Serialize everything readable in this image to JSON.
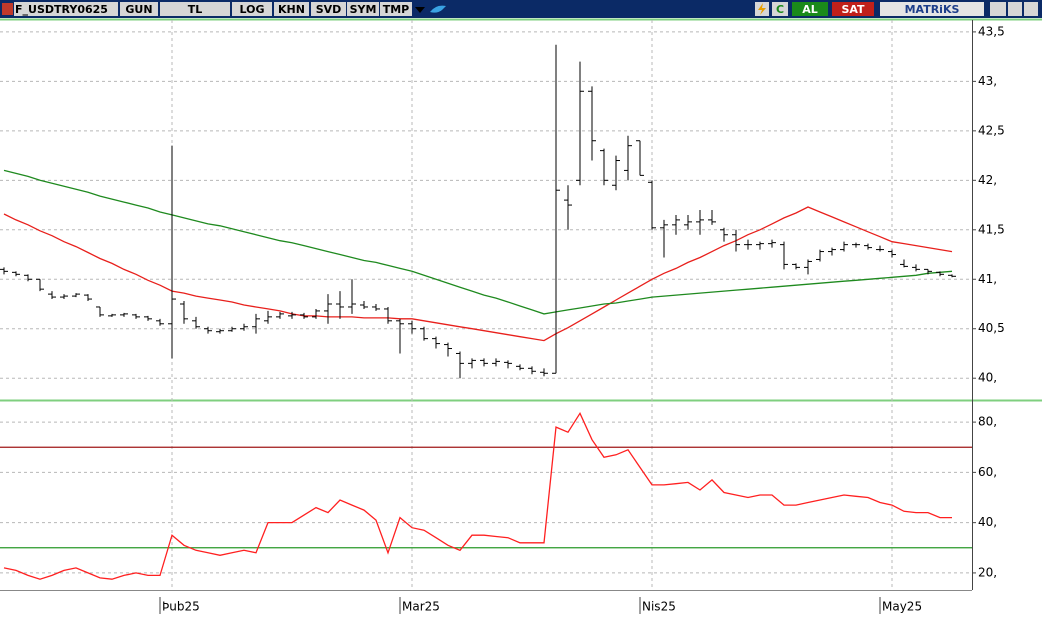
{
  "toolbar": {
    "symbol": "F_USDTRY0625",
    "buttons": [
      "GUN",
      "TL",
      "LOG",
      "KHN",
      "SVD",
      "SYM",
      "TMP"
    ],
    "c": "C",
    "buy": "AL",
    "sell": "SAT",
    "brand": "MATRiKS"
  },
  "chart_data": [
    {
      "type": "ohlc",
      "color": "#000000",
      "ylim": [
        39.8,
        43.6
      ],
      "yticks": [
        {
          "value": 40,
          "label": "40,"
        },
        {
          "value": 40.5,
          "label": "40,5"
        },
        {
          "value": 41,
          "label": "41,"
        },
        {
          "value": 41.5,
          "label": "41,5"
        },
        {
          "value": 42,
          "label": "42,"
        },
        {
          "value": 42.5,
          "label": "42,5"
        },
        {
          "value": 43,
          "label": "43,"
        },
        {
          "value": 43.5,
          "label": "43,5"
        }
      ],
      "grid": true,
      "open": [
        41.1,
        41.07,
        41.04,
        41.0,
        40.85,
        40.82,
        40.83,
        40.84,
        40.72,
        40.63,
        40.64,
        40.64,
        40.62,
        40.58,
        40.55,
        40.75,
        40.58,
        40.5,
        40.47,
        40.48,
        40.5,
        40.52,
        40.58,
        40.62,
        40.63,
        40.64,
        40.62,
        40.68,
        40.75,
        40.72,
        40.74,
        40.72,
        40.7,
        40.58,
        40.55,
        40.5,
        40.4,
        40.34,
        40.25,
        40.15,
        40.18,
        40.15,
        40.16,
        40.12,
        40.1,
        40.06,
        40.05,
        41.8,
        42.0,
        42.9,
        42.3,
        41.95,
        42.1,
        42.4,
        41.98,
        41.52,
        41.55,
        41.55,
        41.58,
        41.6,
        41.5,
        41.45,
        41.35,
        41.35,
        41.36,
        41.35,
        41.15,
        41.12,
        41.2,
        41.28,
        41.3,
        41.35,
        41.34,
        41.3,
        41.28,
        41.15,
        41.12,
        41.1,
        41.07,
        41.04
      ],
      "high": [
        41.12,
        41.08,
        41.05,
        41.0,
        40.88,
        40.85,
        40.86,
        40.85,
        40.72,
        40.65,
        40.66,
        40.65,
        40.63,
        40.6,
        42.35,
        40.78,
        40.62,
        40.52,
        40.5,
        40.52,
        40.55,
        40.65,
        40.68,
        40.67,
        40.67,
        40.66,
        40.7,
        40.85,
        40.88,
        41.0,
        40.78,
        40.75,
        40.72,
        40.6,
        40.58,
        40.52,
        40.42,
        40.36,
        40.27,
        40.2,
        40.2,
        40.2,
        40.18,
        40.14,
        40.12,
        40.1,
        43.37,
        41.95,
        43.2,
        42.95,
        42.32,
        42.25,
        42.45,
        42.4,
        42.0,
        41.6,
        41.65,
        41.65,
        41.7,
        41.7,
        41.52,
        41.5,
        41.4,
        41.38,
        41.4,
        41.38,
        41.16,
        41.2,
        41.3,
        41.32,
        41.38,
        41.37,
        41.36,
        41.34,
        41.3,
        41.2,
        41.15,
        41.1,
        41.08,
        41.05
      ],
      "low": [
        41.05,
        41.03,
        40.98,
        40.88,
        40.8,
        40.8,
        40.82,
        40.78,
        40.62,
        40.62,
        40.62,
        40.6,
        40.58,
        40.53,
        40.2,
        40.55,
        40.5,
        40.45,
        40.45,
        40.47,
        40.48,
        40.45,
        40.55,
        40.6,
        40.6,
        40.6,
        40.6,
        40.55,
        40.6,
        40.65,
        40.7,
        40.68,
        40.55,
        40.25,
        40.45,
        40.38,
        40.3,
        40.22,
        40.0,
        40.1,
        40.12,
        40.12,
        40.1,
        40.08,
        40.04,
        40.02,
        40.05,
        41.5,
        41.95,
        42.2,
        41.95,
        41.9,
        42.0,
        42.05,
        41.5,
        41.22,
        41.45,
        41.5,
        41.45,
        41.55,
        41.38,
        41.28,
        41.3,
        41.3,
        41.32,
        41.1,
        41.1,
        41.05,
        41.18,
        41.24,
        41.28,
        41.32,
        41.3,
        41.28,
        41.22,
        41.12,
        41.08,
        41.05,
        41.03,
        41.02
      ],
      "close": [
        41.08,
        41.05,
        41.0,
        40.9,
        40.82,
        40.83,
        40.85,
        40.8,
        40.64,
        40.64,
        40.65,
        40.62,
        40.6,
        40.55,
        40.8,
        40.6,
        40.52,
        40.48,
        40.48,
        40.5,
        40.52,
        40.6,
        40.62,
        40.65,
        40.64,
        40.62,
        40.68,
        40.75,
        40.72,
        40.75,
        40.72,
        40.7,
        40.58,
        40.55,
        40.5,
        40.4,
        40.35,
        40.3,
        40.15,
        40.18,
        40.15,
        40.17,
        40.15,
        40.1,
        40.07,
        40.05,
        41.9,
        41.75,
        42.9,
        42.4,
        42.0,
        42.2,
        42.35,
        42.05,
        41.52,
        41.55,
        41.6,
        41.58,
        41.6,
        41.58,
        41.45,
        41.35,
        41.35,
        41.36,
        41.37,
        41.15,
        41.12,
        41.18,
        41.28,
        41.3,
        41.35,
        41.35,
        41.32,
        41.3,
        41.25,
        41.13,
        41.1,
        41.08,
        41.05,
        41.03
      ],
      "series": [
        {
          "color": "#e8201c",
          "values": [
            41.66,
            41.6,
            41.55,
            41.49,
            41.44,
            41.38,
            41.33,
            41.27,
            41.21,
            41.16,
            41.1,
            41.05,
            40.99,
            40.94,
            40.88,
            40.86,
            40.83,
            40.81,
            40.79,
            40.77,
            40.74,
            40.72,
            40.7,
            40.68,
            40.65,
            40.63,
            40.63,
            40.62,
            40.62,
            40.62,
            40.61,
            40.61,
            40.61,
            40.6,
            40.6,
            40.58,
            40.56,
            40.54,
            40.52,
            40.5,
            40.48,
            40.46,
            40.44,
            40.42,
            40.4,
            40.38,
            40.45,
            40.51,
            40.58,
            40.65,
            40.72,
            40.79,
            40.86,
            40.93,
            41.0,
            41.06,
            41.11,
            41.17,
            41.22,
            41.28,
            41.34,
            41.39,
            41.45,
            41.5,
            41.56,
            41.62,
            41.67,
            41.73,
            41.68,
            41.63,
            41.58,
            41.53,
            41.48,
            41.43,
            41.38,
            41.36,
            41.34,
            41.32,
            41.3,
            41.28
          ]
        },
        {
          "color": "#1f8a1f",
          "values": [
            42.1,
            42.07,
            42.04,
            42.0,
            41.97,
            41.94,
            41.91,
            41.88,
            41.84,
            41.81,
            41.78,
            41.75,
            41.72,
            41.68,
            41.65,
            41.62,
            41.59,
            41.56,
            41.54,
            41.51,
            41.48,
            41.45,
            41.42,
            41.39,
            41.37,
            41.34,
            41.31,
            41.28,
            41.25,
            41.22,
            41.19,
            41.17,
            41.14,
            41.11,
            41.08,
            41.04,
            41.0,
            40.96,
            40.92,
            40.88,
            40.84,
            40.81,
            40.77,
            40.73,
            40.69,
            40.65,
            40.67,
            40.69,
            40.71,
            40.73,
            40.75,
            40.76,
            40.78,
            40.8,
            40.82,
            40.83,
            40.84,
            40.85,
            40.86,
            40.87,
            40.88,
            40.89,
            40.9,
            40.91,
            40.92,
            40.93,
            40.94,
            40.95,
            40.96,
            40.97,
            40.98,
            40.99,
            41.0,
            41.01,
            41.02,
            41.03,
            41.04,
            41.06,
            41.07,
            41.08
          ]
        }
      ]
    },
    {
      "type": "line",
      "color": "#ff2020",
      "ylim": [
        14,
        88
      ],
      "yticks": [
        {
          "value": 20,
          "label": "20,"
        },
        {
          "value": 40,
          "label": "40,"
        },
        {
          "value": 60,
          "label": "60,"
        },
        {
          "value": 80,
          "label": "80,"
        }
      ],
      "grid": true,
      "hlines": [
        {
          "value": 70,
          "color": "#a01818"
        },
        {
          "value": 30,
          "color": "#2a9a2a"
        }
      ],
      "categories": [
        null,
        null,
        null,
        null,
        null,
        null,
        null,
        null,
        null,
        null,
        null,
        null,
        null,
        null,
        "Þub25",
        null,
        null,
        null,
        null,
        null,
        null,
        null,
        null,
        null,
        null,
        null,
        null,
        null,
        null,
        null,
        null,
        null,
        null,
        null,
        "Mar25",
        null,
        null,
        null,
        null,
        null,
        null,
        null,
        null,
        null,
        null,
        null,
        null,
        null,
        null,
        null,
        null,
        null,
        null,
        null,
        "Nis25",
        null,
        null,
        null,
        null,
        null,
        null,
        null,
        null,
        null,
        null,
        null,
        null,
        null,
        null,
        null,
        null,
        null,
        null,
        null,
        "May25",
        null,
        null,
        null,
        null,
        null
      ],
      "values": [
        22,
        21,
        19,
        17.5,
        19,
        21,
        22,
        20,
        18,
        17.5,
        19,
        20,
        19,
        19,
        35,
        31,
        29,
        28,
        27,
        28,
        29,
        28,
        40,
        40,
        40,
        43,
        46,
        44,
        49,
        47,
        45,
        41,
        28,
        42,
        38,
        37,
        34,
        31,
        29,
        35,
        35,
        34.5,
        34,
        32,
        32,
        32,
        78,
        76,
        83.5,
        73,
        66,
        67,
        69,
        62,
        55,
        55,
        55.5,
        56,
        53,
        57,
        52,
        51,
        50,
        51,
        51,
        47,
        47,
        48,
        49,
        50,
        51,
        50.5,
        50,
        48,
        47,
        44.5,
        44,
        44,
        42,
        42
      ]
    }
  ]
}
